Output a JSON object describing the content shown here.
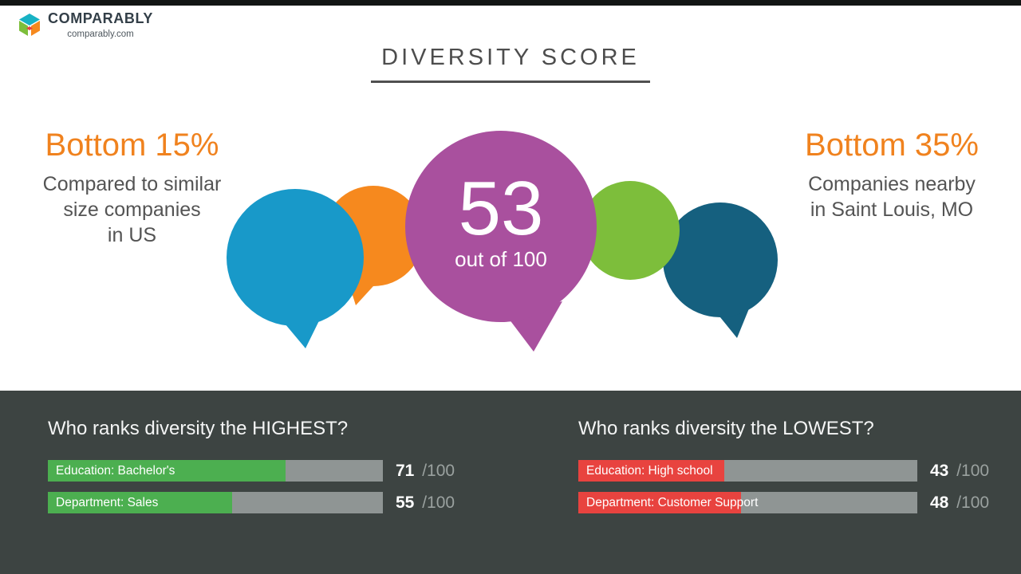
{
  "header": {
    "brand": "COMPARABLY",
    "brand_sub": "comparably.com",
    "title": "DIVERSITY SCORE"
  },
  "callouts": {
    "left": {
      "headline": "Bottom 15%",
      "lines": [
        "Compared to similar",
        "size companies",
        "in US"
      ]
    },
    "right": {
      "headline": "Bottom 35%",
      "lines": [
        "Companies nearby",
        "in Saint Louis, MO"
      ]
    }
  },
  "score": {
    "value": "53",
    "caption": "out of 100"
  },
  "panels": {
    "highest": {
      "title": "Who ranks diversity the HIGHEST?",
      "bars": [
        {
          "label": "Education: Bachelor's",
          "value": 71,
          "denom": "/100"
        },
        {
          "label": "Department: Sales",
          "value": 55,
          "denom": "/100"
        }
      ]
    },
    "lowest": {
      "title": "Who ranks diversity the LOWEST?",
      "bars": [
        {
          "label": "Education: High school",
          "value": 43,
          "denom": "/100"
        },
        {
          "label": "Department: Customer Support",
          "value": 48,
          "denom": "/100"
        }
      ]
    }
  },
  "colors": {
    "teal": "#1899C9",
    "orange": "#F6891E",
    "purple": "#A9509E",
    "green": "#7DBE3B",
    "navy": "#15607F",
    "bar_green": "#4CAF50",
    "bar_red": "#E8433F",
    "headline_orange": "#F0821E",
    "panel_bg": "#3D4442"
  },
  "chart_data": [
    {
      "type": "score",
      "title": "DIVERSITY SCORE",
      "value": 53,
      "max": 100,
      "annotations": [
        "Bottom 15% — Compared to similar size companies in US",
        "Bottom 35% — Companies nearby in Saint Louis, MO"
      ]
    },
    {
      "type": "bar",
      "title": "Who ranks diversity the HIGHEST?",
      "categories": [
        "Education: Bachelor's",
        "Department: Sales"
      ],
      "values": [
        71,
        55
      ],
      "xlim": [
        0,
        100
      ],
      "bar_color": "#4CAF50",
      "value_suffix": "/100"
    },
    {
      "type": "bar",
      "title": "Who ranks diversity the LOWEST?",
      "categories": [
        "Education: High school",
        "Department: Customer Support"
      ],
      "values": [
        43,
        48
      ],
      "xlim": [
        0,
        100
      ],
      "bar_color": "#E8433F",
      "value_suffix": "/100"
    }
  ]
}
